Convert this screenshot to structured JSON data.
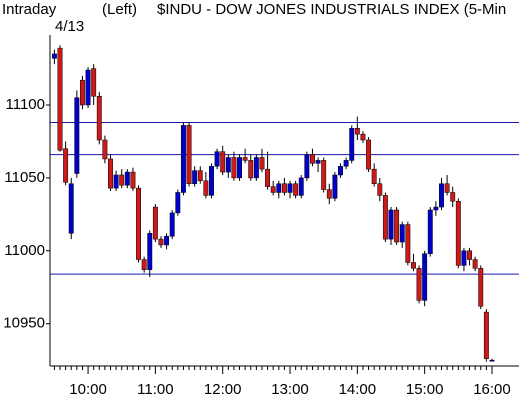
{
  "chart_data": {
    "type": "candlestick",
    "header_left": "Intraday",
    "header_mode": "(Left)",
    "title": "$INDU - DOW JONES INDUSTRIALS INDEX  (5-Min",
    "date": "4/13",
    "categories": [
      null,
      null,
      null,
      null,
      null,
      null,
      "10:00",
      null,
      null,
      null,
      null,
      null,
      null,
      null,
      null,
      null,
      null,
      null,
      "11:00",
      null,
      null,
      null,
      null,
      null,
      null,
      null,
      null,
      null,
      null,
      null,
      "12:00",
      null,
      null,
      null,
      null,
      null,
      null,
      null,
      null,
      null,
      null,
      null,
      "13:00",
      null,
      null,
      null,
      null,
      null,
      null,
      null,
      null,
      null,
      null,
      null,
      "14:00",
      null,
      null,
      null,
      null,
      null,
      null,
      null,
      null,
      null,
      null,
      null,
      "15:00",
      null,
      null,
      null,
      null,
      null,
      null,
      null,
      null,
      null,
      null,
      null,
      "16:00"
    ],
    "open": [
      11132,
      11139,
      11070,
      11012,
      11053,
      11117,
      11100,
      11125,
      11106,
      11076,
      11063,
      11043,
      11052,
      11045,
      11054,
      11043,
      10994,
      10987,
      11030,
      11008,
      11004,
      11010,
      11026,
      11040,
      11086,
      11046,
      11055,
      11048,
      11038,
      11058,
      11068,
      11054,
      11064,
      11050,
      11064,
      11062,
      11050,
      11064,
      11056,
      11044,
      11040,
      11046,
      11040,
      11046,
      11038,
      11050,
      11066,
      11060,
      11062,
      11042,
      11036,
      11052,
      11058,
      11062,
      11084,
      11080,
      11076,
      11056,
      11046,
      11038,
      11008,
      11028,
      11006,
      11018,
      10992,
      10988,
      10966,
      10998,
      11028,
      11030,
      11046,
      11040,
      11034,
      10990,
      11000,
      10994,
      10988,
      10958,
      10925
    ],
    "high": [
      11138,
      11141,
      11075,
      11050,
      11110,
      11120,
      11126,
      11128,
      11109,
      11079,
      11066,
      11055,
      11056,
      11056,
      11057,
      11045,
      10996,
      11014,
      11032,
      11010,
      11012,
      11028,
      11042,
      11088,
      11088,
      11058,
      11058,
      11054,
      11060,
      11070,
      11072,
      11066,
      11068,
      11066,
      11070,
      11066,
      11066,
      11070,
      11068,
      11048,
      11048,
      11050,
      11048,
      11048,
      11052,
      11068,
      11070,
      11064,
      11064,
      11046,
      11054,
      11060,
      11064,
      11086,
      11092,
      11082,
      11078,
      11060,
      11050,
      11040,
      11030,
      11030,
      11020,
      11020,
      10998,
      10990,
      11000,
      11030,
      11034,
      11050,
      11052,
      11044,
      11036,
      11002,
      11002,
      10996,
      10990,
      10960,
      10926
    ],
    "low": [
      11128,
      11068,
      11045,
      11008,
      11050,
      11097,
      11098,
      11100,
      11073,
      11060,
      11041,
      11041,
      11043,
      11043,
      11041,
      10992,
      10985,
      10982,
      11006,
      11002,
      11001,
      11008,
      11024,
      11038,
      11044,
      11044,
      11046,
      11036,
      11036,
      11056,
      11052,
      11050,
      11048,
      11048,
      11060,
      11048,
      11048,
      11054,
      11042,
      11038,
      11036,
      11038,
      11036,
      11036,
      11036,
      11048,
      11058,
      11054,
      11040,
      11032,
      11034,
      11050,
      11056,
      11060,
      11076,
      11074,
      11054,
      11044,
      11034,
      11006,
      11004,
      11004,
      11002,
      10990,
      10986,
      10964,
      10962,
      10996,
      11024,
      11028,
      11038,
      11030,
      10988,
      10986,
      10990,
      10986,
      10960,
      10924,
      10924
    ],
    "close": [
      11135,
      11069,
      11047,
      11046,
      11105,
      11100,
      11124,
      11106,
      11076,
      11063,
      11043,
      11052,
      11045,
      11054,
      11043,
      10994,
      10987,
      11012,
      11008,
      11004,
      11010,
      11026,
      11040,
      11086,
      11046,
      11055,
      11048,
      11038,
      11058,
      11068,
      11054,
      11064,
      11050,
      11064,
      11062,
      11050,
      11064,
      11056,
      11044,
      11040,
      11046,
      11040,
      11046,
      11038,
      11050,
      11066,
      11060,
      11062,
      11042,
      11036,
      11052,
      11058,
      11062,
      11084,
      11080,
      11076,
      11056,
      11046,
      11038,
      11008,
      11028,
      11006,
      11018,
      10992,
      10988,
      10966,
      10998,
      11028,
      11030,
      11046,
      11040,
      11034,
      10990,
      11000,
      10994,
      10988,
      10962,
      10926,
      10925
    ],
    "up_color": "#0000cc",
    "down_color": "#cc1a1a",
    "hlines": [
      11088,
      11066,
      10984
    ],
    "hline_color": "#1a1aaa",
    "ylim": [
      10921,
      11148
    ],
    "yticks": [
      10950,
      11000,
      11050,
      11100
    ]
  }
}
